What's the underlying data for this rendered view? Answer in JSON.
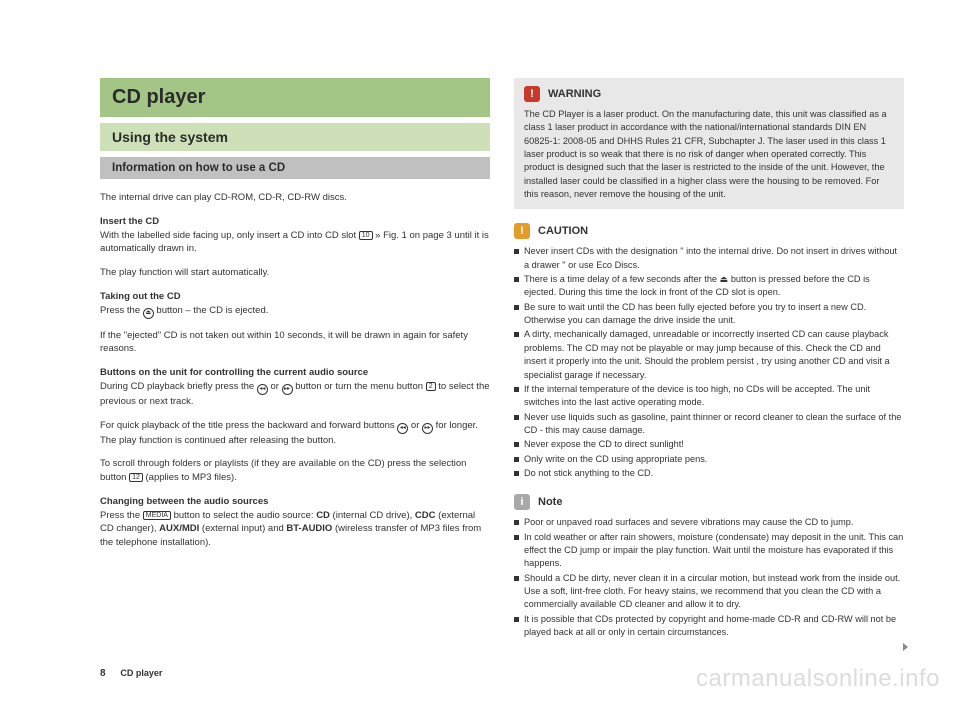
{
  "left": {
    "title": "CD player",
    "subtitle": "Using the system",
    "section": "Information on how to use a CD",
    "p1": "The internal drive can play CD-ROM, CD-R, CD-RW discs.",
    "h1": "Insert the CD",
    "p2a": "With the labelled side facing up, only insert a CD into CD slot ",
    "p2_icon": "10",
    "p2b": " » Fig. 1 on page 3 until it is automatically drawn in.",
    "p3": "The play function will start automatically.",
    "h2": "Taking out the CD",
    "p4a": "Press the ",
    "p4_icon": "⏏",
    "p4b": " button – the CD is ejected.",
    "p5": "If the \"ejected\" CD is not taken out within 10 seconds, it will be drawn in again for safety reasons.",
    "h3": "Buttons on the unit for controlling the current audio source",
    "p6a": "During CD playback briefly press the ",
    "p6_icon1": "◂◂",
    "p6b": " or ",
    "p6_icon2": "▸▸",
    "p6c": " button or turn the menu button ",
    "p6_icon3": "2",
    "p6d": " to select the previous or next track.",
    "p7a": "For quick playback of the title press the backward and forward buttons ",
    "p7_icon1": "◂◂",
    "p7b": " or ",
    "p7_icon2": "▸▸",
    "p7c": " for longer. The play function is continued after releasing the button.",
    "p8a": "To scroll through folders or playlists (if they are available on the CD) press the selection button ",
    "p8_icon": "12",
    "p8b": " (applies to MP3 files).",
    "h4": "Changing between the audio sources",
    "p9a": "Press the ",
    "p9_icon": "MEDIA",
    "p9b": " button to select the audio source: ",
    "p9_b1": "CD",
    "p9c": " (internal CD drive), ",
    "p9_b2": "CDC",
    "p9d": " (external CD changer), ",
    "p9_b3": "AUX/MDI",
    "p9e": " (external input) and ",
    "p9_b4": "BT-AUDIO",
    "p9f": " (wireless transfer of MP3 files from the telephone installation)."
  },
  "right": {
    "warning": {
      "title": "WARNING",
      "body": "The CD Player is a laser product. On the manufacturing date, this unit was classified as a class 1 laser product in accordance with the national/international standards DIN EN 60825-1: 2008-05 and DHHS Rules 21 CFR, Subchapter J. The laser used in this class 1 laser product is so weak that there is no risk of danger when operated correctly. This product is designed such that the laser is restricted to the inside of the unit. However, the installed laser could be classified in a higher class were the housing to be removed. For this reason, never remove the housing of the unit."
    },
    "caution": {
      "title": "CAUTION",
      "items": [
        "Never insert CDs with the designation \" into the internal drive. Do not insert in drives without a drawer \" or use Eco Discs.",
        "There is a time delay of a few seconds after the ⏏ button is pressed before the CD is ejected. During this time the lock in front of the CD slot is open.",
        "Be sure to wait until the CD has been fully ejected before you try to insert a new CD. Otherwise you can damage the drive inside the unit.",
        "A dirty, mechanically damaged, unreadable or incorrectly inserted CD can cause playback problems. The CD may not be playable or may jump because of this. Check the CD and insert it properly into the unit. Should the problem persist , try using another CD and visit a specialist garage if necessary.",
        "If the internal temperature of the device is too high, no CDs will be accepted. The unit switches into the last active operating mode.",
        "Never use liquids such as gasoline, paint thinner or record cleaner to clean the surface of the CD - this may cause damage.",
        "Never expose the CD to direct sunlight!",
        "Only write on the CD using appropriate pens.",
        "Do not stick anything to the CD."
      ]
    },
    "note": {
      "title": "Note",
      "items": [
        "Poor or unpaved road surfaces and severe vibrations may cause the CD to jump.",
        "In cold weather or after rain showers, moisture (condensate) may deposit in the unit. This can effect the CD jump or impair the play function. Wait until the moisture has evaporated if this happens.",
        "Should a CD be dirty, never clean it in a circular motion, but instead work from the inside out. Use a soft, lint-free cloth. For heavy stains, we recommend that you clean the CD with a commercially available CD cleaner and allow it to dry.",
        "It is possible that CDs protected by copyright and home-made CD-R and CD-RW will not be played back at all or only in certain circumstances."
      ]
    }
  },
  "footer": {
    "page": "8",
    "chapter": "CD player"
  },
  "watermark": "carmanualsonline.info",
  "colors": {
    "title_bg": "#a3c585",
    "subtitle_bg": "#cde0b8",
    "section_bg": "#c0c0c0",
    "callout_bg": "#e8e8e8",
    "warn_badge": "#c63a2c",
    "caution_badge": "#e39b2a",
    "note_badge": "#a8a8a8"
  }
}
